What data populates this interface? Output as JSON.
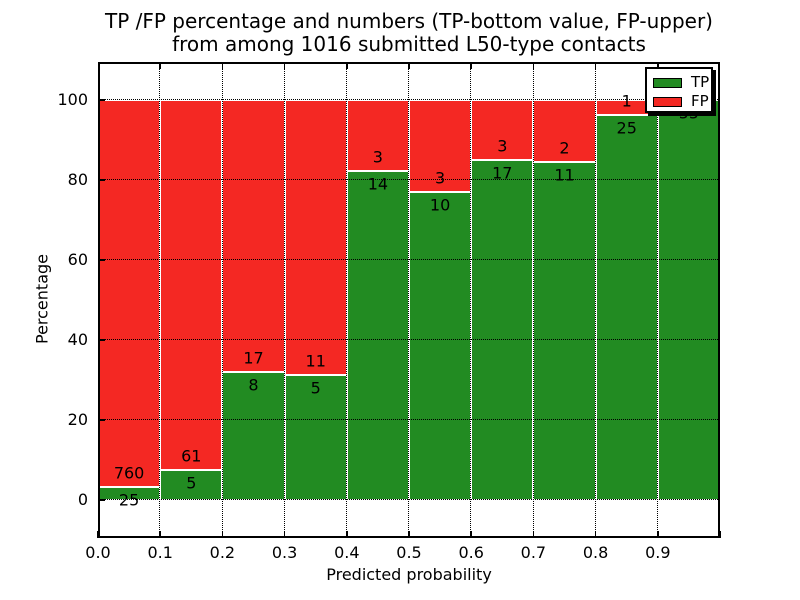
{
  "title": {
    "line1": "TP /FP percentage and numbers (TP-bottom value, FP-upper)",
    "line2": "from among 1016 submitted L50-type contacts"
  },
  "chart_data": {
    "type": "bar",
    "stacked": true,
    "title": "TP /FP percentage and numbers (TP-bottom value, FP-upper) from among 1016 submitted L50-type contacts",
    "xlabel": "Predicted probability",
    "ylabel": "Percentage",
    "x_tick_labels": [
      "0.0",
      "0.1",
      "0.2",
      "0.3",
      "0.4",
      "0.5",
      "0.6",
      "0.7",
      "0.8",
      "0.9"
    ],
    "y_ticks": [
      0,
      20,
      40,
      60,
      80,
      100
    ],
    "xlim": [
      0.0,
      1.0
    ],
    "ylim": [
      -9.5,
      109.5
    ],
    "grid": true,
    "bar_value_unit": "percent of bin total (TP+FP)",
    "legend": {
      "position": "upper right",
      "entries": [
        {
          "label": "TP",
          "color": "#228b22"
        },
        {
          "label": "FP",
          "color": "#f42823"
        }
      ]
    },
    "bins": [
      {
        "x0": 0.0,
        "x1": 0.1,
        "tp": 25,
        "fp": 760
      },
      {
        "x0": 0.1,
        "x1": 0.2,
        "tp": 5,
        "fp": 61
      },
      {
        "x0": 0.2,
        "x1": 0.3,
        "tp": 8,
        "fp": 17
      },
      {
        "x0": 0.3,
        "x1": 0.4,
        "tp": 5,
        "fp": 11
      },
      {
        "x0": 0.4,
        "x1": 0.5,
        "tp": 14,
        "fp": 3
      },
      {
        "x0": 0.5,
        "x1": 0.6,
        "tp": 10,
        "fp": 3
      },
      {
        "x0": 0.6,
        "x1": 0.7,
        "tp": 17,
        "fp": 3
      },
      {
        "x0": 0.7,
        "x1": 0.8,
        "tp": 11,
        "fp": 2
      },
      {
        "x0": 0.8,
        "x1": 0.9,
        "tp": 25,
        "fp": 1
      },
      {
        "x0": 0.9,
        "x1": 1.0,
        "tp": 55,
        "fp": 0
      }
    ]
  },
  "colors": {
    "tp": "#228b22",
    "fp": "#f42823",
    "grid": "#000000",
    "frame": "#000000",
    "background": "#ffffff"
  }
}
